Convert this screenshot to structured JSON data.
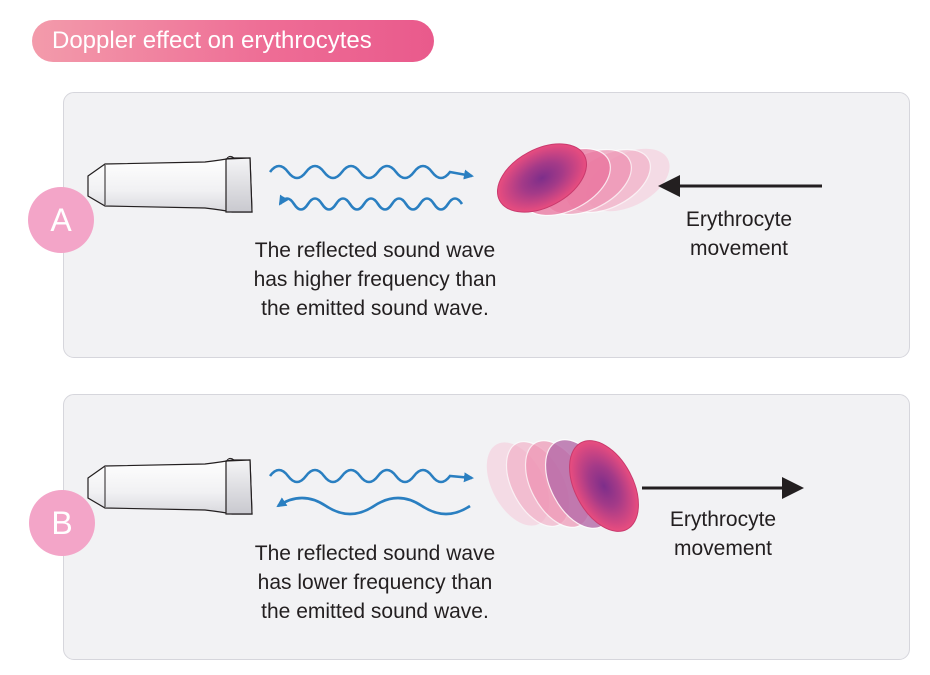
{
  "title": "Doppler effect on erythrocytes",
  "panels": [
    {
      "badge": "A",
      "caption": [
        "The reflected sound wave",
        "has higher frequency than",
        "the emitted sound wave."
      ],
      "movement_label": [
        "Erythrocyte",
        "movement"
      ]
    },
    {
      "badge": "B",
      "caption": [
        "The reflected sound wave",
        "has lower frequency than",
        "the emitted sound wave."
      ],
      "movement_label": [
        "Erythrocyte",
        "movement"
      ]
    }
  ],
  "colors": {
    "title_gradient_start": "#f39bab",
    "title_gradient_end": "#e95a8c",
    "badge": "#f3a5c8",
    "wave": "#2a7fc1",
    "cell": "#e74c7e",
    "cell_core": "#8c3a8f",
    "arrow": "#231f20",
    "panel_background": "#f2f2f4"
  },
  "icons": [
    "ultrasound-probe-icon",
    "sound-wave-icon",
    "erythrocyte-icon",
    "arrow-left-icon",
    "arrow-right-icon"
  ]
}
